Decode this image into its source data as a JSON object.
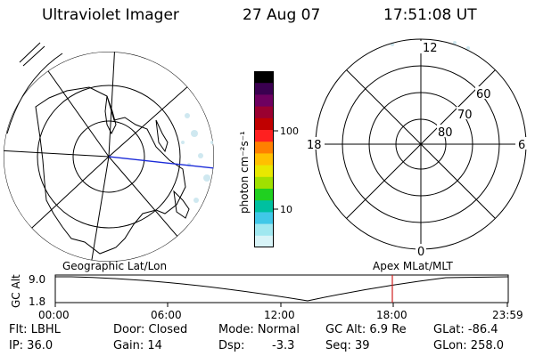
{
  "header": {
    "title": "Ultraviolet Imager",
    "date": "27 Aug 07",
    "time": "17:51:08 UT"
  },
  "colorbar": {
    "label": "photon cm⁻²s⁻¹",
    "ticks": [
      "100",
      "10"
    ],
    "colors": [
      "#000000",
      "#3a0050",
      "#6e0060",
      "#9a0030",
      "#c00000",
      "#ff2020",
      "#ff8000",
      "#ffc000",
      "#e8e800",
      "#a0e000",
      "#20d020",
      "#00c0a0",
      "#40c8e8",
      "#a0e8f0",
      "#d8f4f8"
    ]
  },
  "left_map": {
    "caption": "Geographic Lat/Lon"
  },
  "right_map": {
    "labels": {
      "top": "12",
      "right": "6",
      "left": "18",
      "bottom": "0",
      "r60": "60",
      "r70": "70",
      "r80": "80"
    },
    "caption": "Apex MLat/MLT"
  },
  "timeline": {
    "ylabel": "GC Alt",
    "ytick_top": "9.0",
    "ytick_bottom": "1.8",
    "xticks": [
      "00:00",
      "06:00",
      "12:00",
      "18:00",
      "23:59"
    ],
    "marker_color": "#d02020"
  },
  "info": {
    "row1": {
      "flt": "Flt: LBHL",
      "door": "Door: Closed",
      "mode": "Mode: Normal",
      "gcalt": "GC Alt: 6.9 Re",
      "glat": "GLat: -86.4"
    },
    "row2": {
      "ip": "IP: 36.0",
      "gain": "Gain: 14",
      "dsp_label": "Dsp:",
      "dsp_value": "-3.3",
      "seq": "Seq: 39",
      "glon": "GLon: 258.0"
    }
  }
}
